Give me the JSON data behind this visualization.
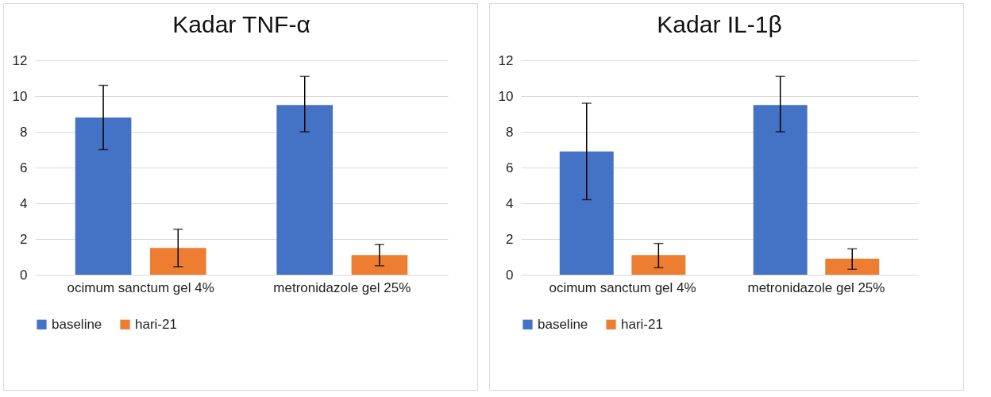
{
  "chart_data": [
    {
      "type": "bar",
      "title": "Kadar TNF-α",
      "categories": [
        "ocimum sanctum gel  4%",
        "metronidazole gel 25%"
      ],
      "series": [
        {
          "name": "baseline",
          "color": "#4472c4",
          "values": [
            8.8,
            9.5
          ],
          "errors": [
            [
              7.0,
              10.6
            ],
            [
              8.0,
              11.1
            ]
          ]
        },
        {
          "name": "hari-21",
          "color": "#ed7d31",
          "values": [
            1.5,
            1.1
          ],
          "errors": [
            [
              0.45,
              2.55
            ],
            [
              0.5,
              1.7
            ]
          ]
        }
      ],
      "ylim": [
        0,
        12
      ],
      "yticks": [
        0,
        2,
        4,
        6,
        8,
        10,
        12
      ],
      "grid": "y",
      "legend": "bottom"
    },
    {
      "type": "bar",
      "title": "Kadar IL-1β",
      "categories": [
        "ocimum sanctum gel 4%",
        "metronidazole gel 25%"
      ],
      "series": [
        {
          "name": "baseline",
          "color": "#4472c4",
          "values": [
            6.9,
            9.5
          ],
          "errors": [
            [
              4.2,
              9.6
            ],
            [
              8.0,
              11.1
            ]
          ]
        },
        {
          "name": "hari-21",
          "color": "#ed7d31",
          "values": [
            1.1,
            0.9
          ],
          "errors": [
            [
              0.4,
              1.75
            ],
            [
              0.3,
              1.45
            ]
          ]
        }
      ],
      "ylim": [
        0,
        12
      ],
      "yticks": [
        0,
        2,
        4,
        6,
        8,
        10,
        12
      ],
      "grid": "y",
      "legend": "bottom"
    }
  ]
}
